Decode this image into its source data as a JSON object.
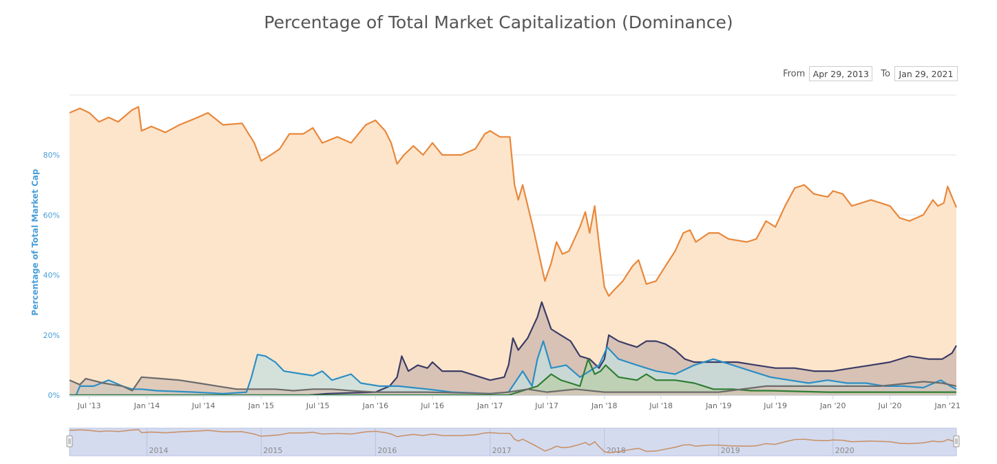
{
  "chart_data": {
    "type": "area",
    "title": "Percentage of Total Market Capitalization (Dominance)",
    "ylabel": "Percentage of Total Market Cap",
    "ylim": [
      0,
      100
    ],
    "y_ticks": [
      "0%",
      "20%",
      "40%",
      "60%",
      "80%"
    ],
    "x_ticks": [
      "Jul '13",
      "Jan '14",
      "Jul '14",
      "Jan '15",
      "Jul '15",
      "Jan '16",
      "Jul '16",
      "Jan '17",
      "Jul '17",
      "Jan '18",
      "Jul '18",
      "Jan '19",
      "Jul '19",
      "Jan '20",
      "Jul '20",
      "Jan '21"
    ],
    "grid": true,
    "x_start": "2013-04-29",
    "x_end": "2021-01-29",
    "series": [
      {
        "color": "#e8873a",
        "fill": "#fde5cc",
        "points": [
          [
            "2013-04-29",
            94
          ],
          [
            "2013-06-01",
            95.5
          ],
          [
            "2013-07-01",
            94
          ],
          [
            "2013-08-01",
            91
          ],
          [
            "2013-09-01",
            92.5
          ],
          [
            "2013-10-01",
            91
          ],
          [
            "2013-11-15",
            95
          ],
          [
            "2013-12-05",
            96
          ],
          [
            "2013-12-15",
            88
          ],
          [
            "2014-01-15",
            89.5
          ],
          [
            "2014-03-01",
            87.5
          ],
          [
            "2014-04-15",
            90
          ],
          [
            "2014-06-01",
            92
          ],
          [
            "2014-07-15",
            94
          ],
          [
            "2014-09-01",
            90
          ],
          [
            "2014-11-01",
            90.5
          ],
          [
            "2014-12-10",
            84
          ],
          [
            "2015-01-01",
            78
          ],
          [
            "2015-02-01",
            80
          ],
          [
            "2015-03-01",
            82
          ],
          [
            "2015-04-01",
            87
          ],
          [
            "2015-05-15",
            87
          ],
          [
            "2015-06-15",
            89
          ],
          [
            "2015-07-15",
            84
          ],
          [
            "2015-09-01",
            86
          ],
          [
            "2015-10-15",
            84
          ],
          [
            "2015-12-01",
            90
          ],
          [
            "2016-01-01",
            91.5
          ],
          [
            "2016-02-01",
            88
          ],
          [
            "2016-02-20",
            84
          ],
          [
            "2016-03-10",
            77
          ],
          [
            "2016-04-01",
            80
          ],
          [
            "2016-05-01",
            83
          ],
          [
            "2016-06-01",
            80
          ],
          [
            "2016-07-01",
            84
          ],
          [
            "2016-08-01",
            80
          ],
          [
            "2016-10-01",
            80
          ],
          [
            "2016-11-15",
            82
          ],
          [
            "2016-12-15",
            87
          ],
          [
            "2017-01-01",
            88
          ],
          [
            "2017-02-01",
            86
          ],
          [
            "2017-03-05",
            86
          ],
          [
            "2017-03-20",
            70
          ],
          [
            "2017-04-01",
            65
          ],
          [
            "2017-04-15",
            70
          ],
          [
            "2017-05-20",
            55
          ],
          [
            "2017-06-10",
            45
          ],
          [
            "2017-06-25",
            38
          ],
          [
            "2017-07-15",
            44
          ],
          [
            "2017-08-01",
            51
          ],
          [
            "2017-08-20",
            47
          ],
          [
            "2017-09-10",
            48
          ],
          [
            "2017-10-15",
            56
          ],
          [
            "2017-11-01",
            61
          ],
          [
            "2017-11-15",
            54
          ],
          [
            "2017-12-01",
            63
          ],
          [
            "2017-12-15",
            50
          ],
          [
            "2018-01-01",
            36
          ],
          [
            "2018-01-15",
            33
          ],
          [
            "2018-02-01",
            35
          ],
          [
            "2018-03-01",
            38
          ],
          [
            "2018-04-01",
            43
          ],
          [
            "2018-04-20",
            45
          ],
          [
            "2018-05-15",
            37
          ],
          [
            "2018-06-15",
            38
          ],
          [
            "2018-07-15",
            43
          ],
          [
            "2018-08-15",
            48
          ],
          [
            "2018-09-10",
            54
          ],
          [
            "2018-10-01",
            55
          ],
          [
            "2018-10-20",
            51
          ],
          [
            "2018-12-01",
            54
          ],
          [
            "2019-01-01",
            54
          ],
          [
            "2019-02-01",
            52
          ],
          [
            "2019-04-01",
            51
          ],
          [
            "2019-05-01",
            52
          ],
          [
            "2019-06-01",
            58
          ],
          [
            "2019-07-01",
            56
          ],
          [
            "2019-08-01",
            63
          ],
          [
            "2019-09-01",
            69
          ],
          [
            "2019-10-01",
            70
          ],
          [
            "2019-11-01",
            67
          ],
          [
            "2019-12-15",
            66
          ],
          [
            "2020-01-01",
            68
          ],
          [
            "2020-02-01",
            67
          ],
          [
            "2020-03-01",
            63
          ],
          [
            "2020-04-01",
            64
          ],
          [
            "2020-05-01",
            65
          ],
          [
            "2020-06-01",
            64
          ],
          [
            "2020-07-01",
            63
          ],
          [
            "2020-08-01",
            59
          ],
          [
            "2020-09-01",
            58
          ],
          [
            "2020-10-15",
            60
          ],
          [
            "2020-11-15",
            65
          ],
          [
            "2020-12-01",
            63
          ],
          [
            "2020-12-20",
            64
          ],
          [
            "2021-01-01",
            69.5
          ],
          [
            "2021-01-15",
            66
          ],
          [
            "2021-01-29",
            62.5
          ]
        ]
      },
      {
        "color": "#3b3b66",
        "fill": "#c9b6ae",
        "points": [
          [
            "2013-04-29",
            0
          ],
          [
            "2015-06-01",
            0
          ],
          [
            "2015-08-01",
            0.5
          ],
          [
            "2016-01-01",
            1
          ],
          [
            "2016-02-15",
            3
          ],
          [
            "2016-03-10",
            6
          ],
          [
            "2016-03-25",
            13
          ],
          [
            "2016-04-15",
            8
          ],
          [
            "2016-05-15",
            10
          ],
          [
            "2016-06-15",
            9
          ],
          [
            "2016-07-01",
            11
          ],
          [
            "2016-08-01",
            8
          ],
          [
            "2016-10-01",
            8
          ],
          [
            "2016-12-01",
            6
          ],
          [
            "2017-01-01",
            5
          ],
          [
            "2017-02-15",
            6
          ],
          [
            "2017-03-01",
            10
          ],
          [
            "2017-03-15",
            19
          ],
          [
            "2017-04-01",
            15
          ],
          [
            "2017-05-01",
            19
          ],
          [
            "2017-06-01",
            26
          ],
          [
            "2017-06-15",
            31
          ],
          [
            "2017-07-15",
            22
          ],
          [
            "2017-08-15",
            20
          ],
          [
            "2017-09-15",
            18
          ],
          [
            "2017-10-15",
            13
          ],
          [
            "2017-11-15",
            12
          ],
          [
            "2017-12-15",
            9
          ],
          [
            "2018-01-01",
            12
          ],
          [
            "2018-01-15",
            20
          ],
          [
            "2018-02-15",
            18
          ],
          [
            "2018-03-15",
            17
          ],
          [
            "2018-04-15",
            16
          ],
          [
            "2018-05-15",
            18
          ],
          [
            "2018-06-15",
            18
          ],
          [
            "2018-07-15",
            17
          ],
          [
            "2018-08-15",
            15
          ],
          [
            "2018-09-15",
            12
          ],
          [
            "2018-10-15",
            11
          ],
          [
            "2018-12-15",
            11
          ],
          [
            "2019-01-15",
            11
          ],
          [
            "2019-03-01",
            11
          ],
          [
            "2019-05-01",
            10
          ],
          [
            "2019-07-01",
            9
          ],
          [
            "2019-09-01",
            9
          ],
          [
            "2019-11-01",
            8
          ],
          [
            "2020-01-01",
            8
          ],
          [
            "2020-03-01",
            9
          ],
          [
            "2020-05-01",
            10
          ],
          [
            "2020-07-01",
            11
          ],
          [
            "2020-09-01",
            13
          ],
          [
            "2020-11-01",
            12
          ],
          [
            "2020-12-15",
            12
          ],
          [
            "2021-01-15",
            14
          ],
          [
            "2021-01-29",
            16.5
          ]
        ]
      },
      {
        "color": "#2a8ec5",
        "fill": "#c5dfe0",
        "points": [
          [
            "2013-04-29",
            0
          ],
          [
            "2013-05-20",
            0
          ],
          [
            "2013-06-01",
            3
          ],
          [
            "2013-07-15",
            3
          ],
          [
            "2013-09-01",
            5
          ],
          [
            "2013-10-15",
            3
          ],
          [
            "2013-11-15",
            2
          ],
          [
            "2013-12-15",
            2
          ],
          [
            "2014-02-01",
            1.5
          ],
          [
            "2014-06-01",
            1
          ],
          [
            "2014-09-01",
            0.5
          ],
          [
            "2014-11-15",
            1
          ],
          [
            "2014-12-01",
            6
          ],
          [
            "2014-12-20",
            13.5
          ],
          [
            "2015-01-15",
            13
          ],
          [
            "2015-02-15",
            11
          ],
          [
            "2015-03-15",
            8
          ],
          [
            "2015-05-15",
            7
          ],
          [
            "2015-06-15",
            6.5
          ],
          [
            "2015-07-15",
            8
          ],
          [
            "2015-08-15",
            5
          ],
          [
            "2015-10-15",
            7
          ],
          [
            "2015-11-15",
            4
          ],
          [
            "2016-01-15",
            3
          ],
          [
            "2016-03-15",
            3
          ],
          [
            "2016-06-15",
            2
          ],
          [
            "2016-09-01",
            1
          ],
          [
            "2017-01-01",
            0.5
          ],
          [
            "2017-03-01",
            1
          ],
          [
            "2017-04-15",
            8
          ],
          [
            "2017-05-15",
            3
          ],
          [
            "2017-06-01",
            12
          ],
          [
            "2017-06-20",
            18
          ],
          [
            "2017-07-15",
            9
          ],
          [
            "2017-09-01",
            10
          ],
          [
            "2017-10-15",
            6
          ],
          [
            "2017-12-15",
            10
          ],
          [
            "2018-01-10",
            16
          ],
          [
            "2018-02-15",
            12
          ],
          [
            "2018-04-15",
            10
          ],
          [
            "2018-06-15",
            8
          ],
          [
            "2018-08-15",
            7
          ],
          [
            "2018-10-15",
            10
          ],
          [
            "2018-12-15",
            12
          ],
          [
            "2019-02-15",
            10
          ],
          [
            "2019-04-15",
            8
          ],
          [
            "2019-06-15",
            6
          ],
          [
            "2019-08-15",
            5
          ],
          [
            "2019-10-15",
            4
          ],
          [
            "2019-12-15",
            5
          ],
          [
            "2020-02-15",
            4
          ],
          [
            "2020-04-15",
            4
          ],
          [
            "2020-06-15",
            3
          ],
          [
            "2020-08-15",
            3
          ],
          [
            "2020-10-15",
            2.5
          ],
          [
            "2020-12-10",
            5
          ],
          [
            "2021-01-10",
            3
          ],
          [
            "2021-01-29",
            2
          ]
        ]
      },
      {
        "color": "#2e7d32",
        "fill": "#b9cfa9",
        "points": [
          [
            "2013-04-29",
            0
          ],
          [
            "2017-03-01",
            0
          ],
          [
            "2017-06-01",
            3
          ],
          [
            "2017-07-15",
            7
          ],
          [
            "2017-08-15",
            5
          ],
          [
            "2017-09-15",
            4
          ],
          [
            "2017-10-15",
            3
          ],
          [
            "2017-11-10",
            12
          ],
          [
            "2017-12-01",
            7
          ],
          [
            "2017-12-20",
            8
          ],
          [
            "2018-01-05",
            10
          ],
          [
            "2018-02-15",
            6
          ],
          [
            "2018-04-15",
            5
          ],
          [
            "2018-05-15",
            7
          ],
          [
            "2018-06-15",
            5
          ],
          [
            "2018-08-15",
            5
          ],
          [
            "2018-10-15",
            4
          ],
          [
            "2018-12-15",
            2
          ],
          [
            "2019-02-15",
            2
          ],
          [
            "2019-04-15",
            1.5
          ],
          [
            "2019-06-15",
            1.5
          ],
          [
            "2019-12-15",
            1
          ],
          [
            "2020-06-15",
            1
          ],
          [
            "2021-01-29",
            1
          ]
        ]
      },
      {
        "color": "#6b6b6b",
        "fill": "#d6c2b4",
        "points": [
          [
            "2013-04-29",
            5
          ],
          [
            "2013-06-01",
            3.5
          ],
          [
            "2013-06-20",
            5.5
          ],
          [
            "2013-08-15",
            4
          ],
          [
            "2013-10-15",
            3
          ],
          [
            "2013-11-15",
            1.5
          ],
          [
            "2013-12-15",
            6
          ],
          [
            "2014-02-15",
            5.5
          ],
          [
            "2014-04-15",
            5
          ],
          [
            "2014-06-15",
            4
          ],
          [
            "2014-08-15",
            3
          ],
          [
            "2014-10-15",
            2
          ],
          [
            "2014-12-15",
            2
          ],
          [
            "2015-02-15",
            2
          ],
          [
            "2015-04-15",
            1.5
          ],
          [
            "2015-06-15",
            2
          ],
          [
            "2015-08-15",
            2
          ],
          [
            "2015-10-15",
            1.5
          ],
          [
            "2016-01-01",
            1
          ],
          [
            "2016-06-15",
            1
          ],
          [
            "2017-01-01",
            0.5
          ],
          [
            "2017-03-01",
            1
          ],
          [
            "2017-05-01",
            2
          ],
          [
            "2017-07-01",
            1
          ],
          [
            "2017-10-01",
            2
          ],
          [
            "2018-01-01",
            1
          ],
          [
            "2018-06-01",
            1
          ],
          [
            "2019-01-01",
            1
          ],
          [
            "2019-06-01",
            3
          ],
          [
            "2020-01-01",
            3
          ],
          [
            "2020-06-01",
            3
          ],
          [
            "2020-09-01",
            4
          ],
          [
            "2020-10-15",
            4.5
          ],
          [
            "2020-12-15",
            4
          ],
          [
            "2021-01-29",
            3
          ]
        ]
      }
    ]
  },
  "range_selector": {
    "from_label": "From",
    "from_value": "Apr 29, 2013",
    "to_label": "To",
    "to_value": "Jan 29, 2021"
  },
  "navigator": {
    "ticks": [
      "2014",
      "2015",
      "2016",
      "2017",
      "2018",
      "2019",
      "2020"
    ],
    "handle_left": "|||",
    "handle_right": "|||"
  }
}
